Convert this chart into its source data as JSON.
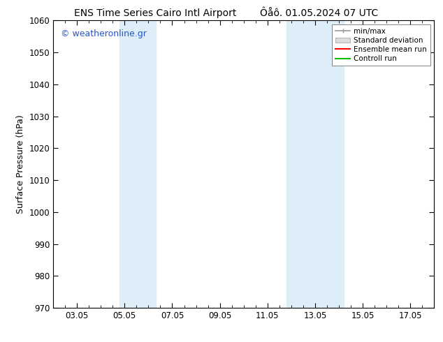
{
  "title_left": "ENS Time Series Cairo Intl Airport",
  "title_right": "Ôåô. 01.05.2024 07 UTC",
  "ylabel": "Surface Pressure (hPa)",
  "ylim": [
    970,
    1060
  ],
  "yticks": [
    970,
    980,
    990,
    1000,
    1010,
    1020,
    1030,
    1040,
    1050,
    1060
  ],
  "xtick_labels": [
    "03.05",
    "05.05",
    "07.05",
    "09.05",
    "11.05",
    "13.05",
    "15.05",
    "17.05"
  ],
  "xtick_positions": [
    2,
    4,
    6,
    8,
    10,
    12,
    14,
    16
  ],
  "xlim": [
    1,
    17
  ],
  "shaded_bands": [
    {
      "x_start": 3.8,
      "x_end": 5.3,
      "color": "#ddeef8"
    },
    {
      "x_start": 10.8,
      "x_end": 11.5,
      "color": "#ddeef8"
    },
    {
      "x_start": 11.5,
      "x_end": 13.2,
      "color": "#ddeef8"
    }
  ],
  "watermark": "© weatheronline.gr",
  "watermark_color": "#2255cc",
  "legend_entries": [
    "min/max",
    "Standard deviation",
    "Ensemble mean run",
    "Controll run"
  ],
  "legend_colors_line": [
    "#aaaaaa",
    "#cccccc",
    "#ff0000",
    "#00bb00"
  ],
  "background_color": "#ffffff",
  "plot_bg_color": "#ffffff",
  "title_fontsize": 10,
  "tick_fontsize": 8.5,
  "ylabel_fontsize": 9
}
